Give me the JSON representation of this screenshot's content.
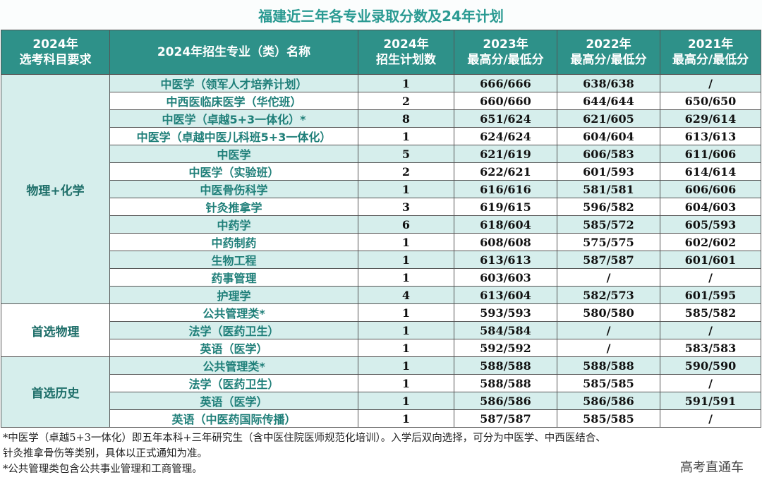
{
  "title": "福建近三年各专业录取分数及24年计划",
  "headers": {
    "req": [
      "2024年",
      "选考科目要求"
    ],
    "major": "2024年招生专业（类）名称",
    "plan": [
      "2024年",
      "招生计划数"
    ],
    "y2023": [
      "2023年",
      "最高分/最低分"
    ],
    "y2022": [
      "2022年",
      "最高分/最低分"
    ],
    "y2021": [
      "2021年",
      "最高分/最低分"
    ]
  },
  "groups": [
    {
      "requirement": "物理+化学",
      "rows": [
        {
          "major": "中医学（领军人才培养计划）",
          "plan": "1",
          "y2023": "666/666",
          "y2022": "638/638",
          "y2021": "/"
        },
        {
          "major": "中西医临床医学（华佗班）",
          "plan": "2",
          "y2023": "660/660",
          "y2022": "644/644",
          "y2021": "650/650"
        },
        {
          "major": "中医学（卓越5+3一体化）*",
          "plan": "8",
          "y2023": "651/624",
          "y2022": "621/605",
          "y2021": "629/614"
        },
        {
          "major": "中医学（卓越中医儿科班5+3一体化）",
          "plan": "1",
          "y2023": "624/624",
          "y2022": "604/604",
          "y2021": "613/613"
        },
        {
          "major": "中医学",
          "plan": "5",
          "y2023": "621/619",
          "y2022": "606/583",
          "y2021": "611/606"
        },
        {
          "major": "中医学（实验班）",
          "plan": "2",
          "y2023": "622/621",
          "y2022": "601/593",
          "y2021": "614/614"
        },
        {
          "major": "中医骨伤科学",
          "plan": "1",
          "y2023": "616/616",
          "y2022": "581/581",
          "y2021": "606/606"
        },
        {
          "major": "针灸推拿学",
          "plan": "3",
          "y2023": "619/615",
          "y2022": "596/582",
          "y2021": "604/603"
        },
        {
          "major": "中药学",
          "plan": "6",
          "y2023": "618/604",
          "y2022": "585/572",
          "y2021": "605/593"
        },
        {
          "major": "中药制药",
          "plan": "1",
          "y2023": "608/608",
          "y2022": "575/575",
          "y2021": "602/602"
        },
        {
          "major": "生物工程",
          "plan": "1",
          "y2023": "613/613",
          "y2022": "587/587",
          "y2021": "601/601"
        },
        {
          "major": "药事管理",
          "plan": "1",
          "y2023": "603/603",
          "y2022": "/",
          "y2021": "/"
        },
        {
          "major": "护理学",
          "plan": "4",
          "y2023": "613/604",
          "y2022": "582/573",
          "y2021": "601/595"
        }
      ]
    },
    {
      "requirement": "首选物理",
      "rows": [
        {
          "major": "公共管理类*",
          "plan": "1",
          "y2023": "593/593",
          "y2022": "580/580",
          "y2021": "585/582"
        },
        {
          "major": "法学（医药卫生）",
          "plan": "1",
          "y2023": "584/584",
          "y2022": "/",
          "y2021": "/"
        },
        {
          "major": "英语（医学）",
          "plan": "1",
          "y2023": "592/592",
          "y2022": "/",
          "y2021": "583/583"
        }
      ]
    },
    {
      "requirement": "首选历史",
      "rows": [
        {
          "major": "公共管理类*",
          "plan": "1",
          "y2023": "588/588",
          "y2022": "588/588",
          "y2021": "590/590"
        },
        {
          "major": "法学（医药卫生）",
          "plan": "1",
          "y2023": "588/588",
          "y2022": "585/585",
          "y2021": "/"
        },
        {
          "major": "英语（医学）",
          "plan": "1",
          "y2023": "586/586",
          "y2022": "586/586",
          "y2021": "591/591"
        },
        {
          "major": "英语（中医药国际传播）",
          "plan": "1",
          "y2023": "587/587",
          "y2022": "585/585",
          "y2021": "/"
        }
      ]
    }
  ],
  "notes": [
    "*中医学（卓越5+3一体化）即五年本科+三年研究生（含中医住院医师规范化培训）。入学后双向选择，可分为中医学、中西医结合、",
    "针灸推拿骨伤等类别，具体以正式通知为准。",
    "*公共管理类包含公共事业管理和工商管理。"
  ],
  "watermark": "高考直通车",
  "colors": {
    "header_bg": "#2e9189",
    "title_text": "#2a9a92",
    "stripe_bg": "#d6eeec",
    "major_text": "#1f7f79"
  }
}
